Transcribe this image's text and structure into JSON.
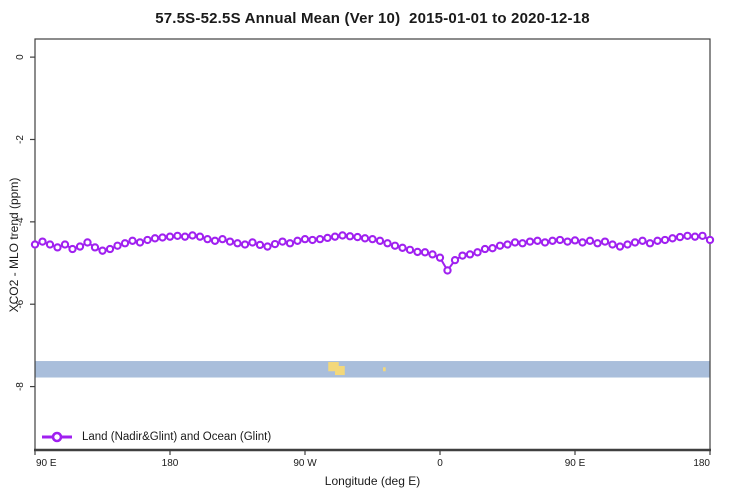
{
  "window": {
    "title": "57.5S-52.5S Annual Mean (Ver 10)  2015-01-01 to 2020-12-18"
  },
  "chart_data": {
    "type": "line",
    "title": "57.5S-52.5S Annual Mean (Ver 10)  2015-01-01 to 2020-12-18",
    "xlabel": "Longitude (deg E)",
    "ylabel": "XCO2 - MLO trend (ppm)",
    "ylim": [
      -9.54,
      0.44
    ],
    "yticks": [
      0,
      -2,
      -4,
      -6,
      -8
    ],
    "ytick_labels": [
      "0",
      "-2",
      "-4",
      "-6",
      "-8"
    ],
    "grid": false,
    "background": "#ffffff",
    "axis_color": "#3f3f3f",
    "x_axis": {
      "start_deg": 90,
      "end_deg": 540,
      "ticks_deg": [
        90,
        180,
        270,
        360,
        450,
        540
      ],
      "tick_labels": [
        "90 E",
        "180",
        "90 W",
        "0",
        "90 E",
        "180"
      ],
      "note": "longitude axis wraps: 90E to 180, westward to 0, back to 180"
    },
    "series": [
      {
        "name": "Land (Nadir&Glint) and Ocean (Glint)",
        "color": "#a020f0",
        "marker": "open-circle",
        "x_deg": [
          90,
          95,
          100,
          105,
          110,
          115,
          120,
          125,
          130,
          135,
          140,
          145,
          150,
          155,
          160,
          165,
          170,
          175,
          180,
          185,
          190,
          195,
          200,
          205,
          210,
          215,
          220,
          225,
          230,
          235,
          240,
          245,
          250,
          255,
          260,
          265,
          270,
          275,
          280,
          285,
          290,
          295,
          300,
          305,
          310,
          315,
          320,
          325,
          330,
          335,
          340,
          345,
          350,
          355,
          360,
          365,
          370,
          375,
          380,
          385,
          390,
          395,
          400,
          405,
          410,
          415,
          420,
          425,
          430,
          435,
          440,
          445,
          450,
          455,
          460,
          465,
          470,
          475,
          480,
          485,
          490,
          495,
          500,
          505,
          510,
          515,
          520,
          525,
          530,
          535,
          540
        ],
        "values": [
          -4.55,
          -4.48,
          -4.55,
          -4.62,
          -4.55,
          -4.66,
          -4.6,
          -4.5,
          -4.62,
          -4.7,
          -4.66,
          -4.58,
          -4.52,
          -4.46,
          -4.5,
          -4.44,
          -4.4,
          -4.38,
          -4.36,
          -4.34,
          -4.36,
          -4.33,
          -4.36,
          -4.42,
          -4.46,
          -4.42,
          -4.48,
          -4.52,
          -4.55,
          -4.5,
          -4.56,
          -4.6,
          -4.54,
          -4.48,
          -4.52,
          -4.46,
          -4.42,
          -4.44,
          -4.42,
          -4.39,
          -4.36,
          -4.33,
          -4.35,
          -4.37,
          -4.4,
          -4.42,
          -4.46,
          -4.52,
          -4.58,
          -4.63,
          -4.68,
          -4.73,
          -4.74,
          -4.79,
          -4.87,
          -5.18,
          -4.93,
          -4.82,
          -4.79,
          -4.74,
          -4.66,
          -4.64,
          -4.58,
          -4.55,
          -4.5,
          -4.52,
          -4.48,
          -4.46,
          -4.5,
          -4.46,
          -4.44,
          -4.48,
          -4.45,
          -4.5,
          -4.46,
          -4.52,
          -4.48,
          -4.55,
          -4.6,
          -4.55,
          -4.5,
          -4.46,
          -4.52,
          -4.46,
          -4.44,
          -4.4,
          -4.37,
          -4.34,
          -4.36,
          -4.34,
          -4.44
        ]
      }
    ],
    "map_strip": {
      "description": "ocean/land geography strip along latitude band",
      "value_range": [
        -7.78,
        -7.38
      ],
      "ocean_color": "#a9bedb",
      "land_color": "#f3d87a",
      "land_patches": [
        {
          "deg": [
            285.5,
            292.5
          ],
          "frac": [
            0.06,
            0.62
          ]
        },
        {
          "deg": [
            290.0,
            296.5
          ],
          "frac": [
            0.3,
            0.85
          ]
        },
        {
          "deg": [
            322.0,
            323.8
          ],
          "frac": [
            0.38,
            0.62
          ]
        }
      ]
    },
    "legend": {
      "position": "bottom-left",
      "entries": [
        {
          "label": "Land (Nadir&Glint) and Ocean (Glint)",
          "color": "#a020f0"
        }
      ]
    }
  }
}
